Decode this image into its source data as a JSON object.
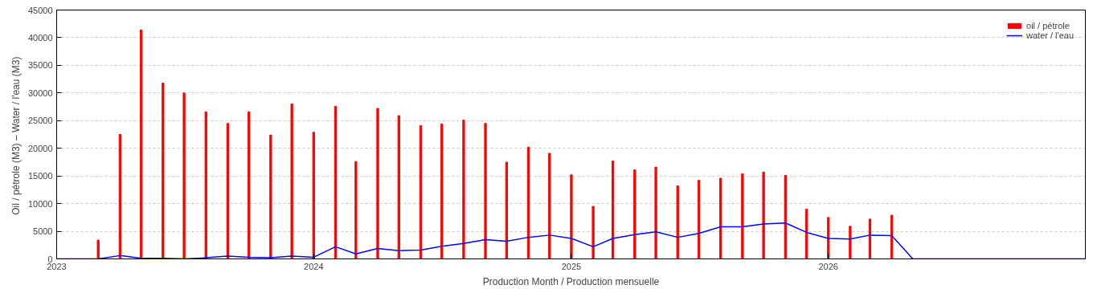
{
  "chart_data": {
    "type": "bar",
    "xlabel": "Production Month / Production mensuelle",
    "ylabel": "Oil / pétrole (M3) –  Water / l'eau (M3)",
    "xlim": [
      "2023-01",
      "2027-01"
    ],
    "xticks": [
      {
        "value": "2023",
        "label": "2023"
      },
      {
        "value": "2024",
        "label": "2024"
      },
      {
        "value": "2025",
        "label": "2025"
      },
      {
        "value": "2026",
        "label": "2026"
      }
    ],
    "ylim": [
      0,
      45000
    ],
    "yticks": [
      0,
      5000,
      10000,
      15000,
      20000,
      25000,
      30000,
      35000,
      40000,
      45000
    ],
    "grid": "y",
    "legend": "top right",
    "series": [
      {
        "name": "oil / pétrole",
        "color": "#ff0000",
        "x": [
          "2023-03",
          "2023-04",
          "2023-05",
          "2023-06",
          "2023-07",
          "2023-08",
          "2023-09",
          "2023-10",
          "2023-11",
          "2023-12",
          "2024-01",
          "2024-02",
          "2024-03",
          "2024-04",
          "2024-05",
          "2024-06",
          "2024-07",
          "2024-08",
          "2024-09",
          "2024-10",
          "2024-11",
          "2024-12",
          "2025-01",
          "2025-02",
          "2025-03",
          "2025-04",
          "2025-05",
          "2025-06",
          "2025-07",
          "2025-08",
          "2025-09",
          "2025-10",
          "2025-11",
          "2025-12",
          "2026-01",
          "2026-02",
          "2026-03",
          "2026-04"
        ],
        "values": [
          3400,
          22500,
          41400,
          31800,
          30000,
          26600,
          24500,
          26600,
          22400,
          28000,
          22900,
          27600,
          17600,
          27200,
          25900,
          24100,
          24400,
          25100,
          24500,
          17500,
          20200,
          19100,
          15200,
          9500,
          17700,
          16100,
          16600,
          13200,
          14200,
          14600,
          15400,
          15700,
          15100,
          9000,
          7500,
          5900,
          7200,
          7900
        ]
      },
      {
        "name": "water / l'eau",
        "type": "line",
        "color": "#0000ff",
        "x": [
          "2023-01",
          "2023-03",
          "2023-04",
          "2023-05",
          "2023-06",
          "2023-07",
          "2023-08",
          "2023-09",
          "2023-10",
          "2023-11",
          "2023-12",
          "2024-01",
          "2024-02",
          "2024-03",
          "2024-04",
          "2024-05",
          "2024-06",
          "2024-07",
          "2024-08",
          "2024-09",
          "2024-10",
          "2024-11",
          "2024-12",
          "2025-01",
          "2025-02",
          "2025-03",
          "2025-04",
          "2025-05",
          "2025-06",
          "2025-07",
          "2025-08",
          "2025-09",
          "2025-10",
          "2025-11",
          "2025-12",
          "2026-01",
          "2026-02",
          "2026-03",
          "2026-04",
          "2026-05",
          "2027-01"
        ],
        "values": [
          0,
          0,
          600,
          100,
          100,
          0,
          200,
          500,
          300,
          200,
          500,
          300,
          2200,
          900,
          1900,
          1500,
          1600,
          2300,
          2800,
          3500,
          3200,
          3900,
          4300,
          3700,
          2200,
          3700,
          4400,
          4900,
          3900,
          4600,
          5800,
          5800,
          6300,
          6500,
          4800,
          3700,
          3600,
          4300,
          4200,
          0,
          0
        ]
      }
    ]
  }
}
